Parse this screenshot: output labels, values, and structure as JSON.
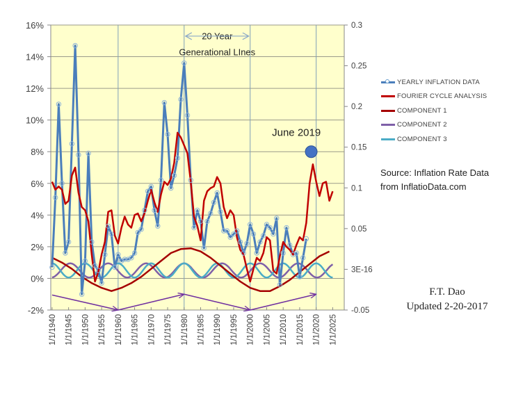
{
  "chart_data": {
    "type": "line",
    "title": "",
    "xlabel": "",
    "ylabel": "",
    "x_tick_labels": [
      "1/1/1940",
      "1/1/1945",
      "1/1/1950",
      "1/1/1955",
      "1/1/1960",
      "1/1/1965",
      "1/1/1970",
      "1/1/1975",
      "1/1/1980",
      "1/1/1985",
      "1/1/1990",
      "1/1/1995",
      "1/1/2000",
      "1/1/2005",
      "1/1/2010",
      "1/1/2015",
      "1/1/2020",
      "1/1/2025"
    ],
    "x_range": [
      1939.6,
      2028.5
    ],
    "y_left": {
      "range": [
        -2,
        16
      ],
      "ticks": [
        -2,
        0,
        2,
        4,
        6,
        8,
        10,
        12,
        14,
        16
      ],
      "tick_labels": [
        "-2%",
        "0%",
        "2%",
        "4%",
        "6%",
        "8%",
        "10%",
        "12%",
        "14%",
        "16%"
      ]
    },
    "y_right": {
      "range": [
        -0.05,
        0.3
      ],
      "ticks": [
        -0.05,
        0.0,
        0.05,
        0.1,
        0.15,
        0.2,
        0.25,
        0.3
      ],
      "tick_labels": [
        "-0.05",
        "3E-16",
        "0.05",
        "0.1",
        "0.15",
        "0.2",
        "0.25",
        "0.3"
      ]
    },
    "vertical_gridlines_years": [
      1960,
      1980,
      2000,
      2020
    ],
    "horizontal_grid": true,
    "legend_position": "right",
    "series": [
      {
        "name": "YEARLY INFLATION DATA",
        "color": "#4a7ebb",
        "marker": "open-circle",
        "axis": "left",
        "x": [
          1940,
          1941,
          1942,
          1943,
          1944,
          1945,
          1946,
          1947,
          1948,
          1949,
          1950,
          1951,
          1952,
          1953,
          1954,
          1955,
          1956,
          1957,
          1958,
          1959,
          1960,
          1961,
          1962,
          1963,
          1964,
          1965,
          1966,
          1967,
          1968,
          1969,
          1970,
          1971,
          1972,
          1973,
          1974,
          1975,
          1976,
          1977,
          1978,
          1979,
          1980,
          1981,
          1982,
          1983,
          1984,
          1985,
          1986,
          1987,
          1988,
          1989,
          1990,
          1991,
          1992,
          1993,
          1994,
          1995,
          1996,
          1997,
          1998,
          1999,
          2000,
          2001,
          2002,
          2003,
          2004,
          2005,
          2006,
          2007,
          2008,
          2009,
          2010,
          2011,
          2012,
          2013,
          2014,
          2015,
          2016,
          2017
        ],
        "y": [
          0.7,
          5.1,
          11.0,
          6.0,
          1.6,
          2.3,
          8.5,
          14.7,
          7.8,
          -1.0,
          1.1,
          7.9,
          2.3,
          0.8,
          0.5,
          -0.3,
          1.5,
          3.3,
          2.8,
          0.7,
          1.5,
          1.1,
          1.2,
          1.2,
          1.3,
          1.6,
          2.9,
          3.1,
          4.3,
          5.5,
          5.8,
          4.3,
          3.3,
          6.2,
          11.1,
          9.1,
          5.7,
          6.5,
          7.6,
          11.3,
          13.6,
          10.3,
          6.2,
          3.2,
          4.3,
          3.6,
          1.9,
          3.6,
          4.1,
          4.8,
          5.4,
          4.2,
          3.0,
          3.0,
          2.6,
          2.8,
          3.0,
          2.3,
          1.6,
          2.2,
          3.4,
          2.8,
          1.6,
          2.3,
          2.7,
          3.4,
          3.2,
          2.8,
          3.8,
          -0.4,
          1.6,
          3.2,
          2.1,
          1.5,
          1.6,
          0.1,
          1.3,
          2.5
        ]
      },
      {
        "name": "FOURIER CYCLE ANALYSIS",
        "color": "#c00000",
        "marker": "none",
        "axis": "left",
        "x": [
          1940,
          1941,
          1942,
          1943,
          1944,
          1945,
          1946,
          1947,
          1948,
          1949,
          1950,
          1951,
          1952,
          1953,
          1954,
          1955,
          1956,
          1957,
          1958,
          1959,
          1960,
          1961,
          1962,
          1963,
          1964,
          1965,
          1966,
          1967,
          1968,
          1969,
          1970,
          1971,
          1972,
          1973,
          1974,
          1975,
          1976,
          1977,
          1978,
          1979,
          1980,
          1981,
          1982,
          1983,
          1984,
          1985,
          1986,
          1987,
          1988,
          1989,
          1990,
          1991,
          1992,
          1993,
          1994,
          1995,
          1996,
          1997,
          1998,
          1999,
          2000,
          2001,
          2002,
          2003,
          2004,
          2005,
          2006,
          2007,
          2008,
          2009,
          2010,
          2011,
          2012,
          2013,
          2014,
          2015,
          2016,
          2017,
          2018,
          2019,
          2020,
          2021,
          2022,
          2023,
          2024,
          2025
        ],
        "y": [
          6.1,
          5.6,
          5.8,
          5.6,
          4.7,
          4.9,
          6.5,
          7.0,
          5.4,
          4.5,
          4.3,
          3.6,
          1.5,
          -0.2,
          0.4,
          1.5,
          2.3,
          4.2,
          4.3,
          2.7,
          2.2,
          3.2,
          3.9,
          3.4,
          3.2,
          4.0,
          4.1,
          3.6,
          4.1,
          4.9,
          5.6,
          4.8,
          4.2,
          5.3,
          6.1,
          5.9,
          6.3,
          7.3,
          9.2,
          8.9,
          8.4,
          7.9,
          6.1,
          3.9,
          3.3,
          2.4,
          4.9,
          5.5,
          5.7,
          5.8,
          6.4,
          6.0,
          4.5,
          3.8,
          4.3,
          4.0,
          2.6,
          1.8,
          1.5,
          0.6,
          -0.2,
          0.6,
          1.3,
          1.1,
          1.6,
          2.6,
          2.4,
          0.5,
          0.3,
          1.4,
          2.3,
          2.0,
          1.8,
          1.5,
          2.1,
          2.6,
          2.4,
          3.5,
          6.0,
          7.2,
          6.1,
          5.2,
          6.0,
          6.1,
          4.9,
          5.5
        ]
      },
      {
        "name": "COMPONENT 1",
        "color": "#a50000",
        "marker": "none",
        "axis": "left",
        "x": [
          1940,
          1943,
          1946,
          1949,
          1952,
          1955,
          1958,
          1961,
          1964,
          1967,
          1970,
          1973,
          1976,
          1979,
          1982,
          1985,
          1988,
          1991,
          1994,
          1997,
          2000,
          2003,
          2006,
          2009,
          2012,
          2015,
          2018,
          2021,
          2024
        ],
        "y": [
          1.3,
          1.0,
          0.6,
          0.1,
          -0.3,
          -0.6,
          -0.8,
          -0.6,
          -0.3,
          0.1,
          0.6,
          1.1,
          1.6,
          1.85,
          1.9,
          1.7,
          1.3,
          0.8,
          0.3,
          -0.2,
          -0.6,
          -0.8,
          -0.8,
          -0.5,
          -0.1,
          0.4,
          0.9,
          1.4,
          1.7
        ]
      },
      {
        "name": "COMPONENT 2",
        "color": "#7f60a8",
        "marker": "none",
        "axis": "left",
        "period_years": 11.5,
        "phase_peak_year": 1980,
        "center": 0.5,
        "amplitude": 0.45
      },
      {
        "name": "COMPONENT 3",
        "color": "#4bacc6",
        "marker": "none",
        "axis": "left",
        "period_years": 10,
        "phase_peak_year": 1980,
        "center": 0.5,
        "amplitude": 0.45
      }
    ],
    "annotations": [
      {
        "type": "text",
        "text": "20 Year",
        "x_year": 1990,
        "y": 15.1
      },
      {
        "type": "text",
        "text": "Generational LInes",
        "x_year": 1990,
        "y": 14.1
      },
      {
        "type": "double-arrow",
        "x_from_year": 1980,
        "x_to_year": 2000,
        "y": 15.3,
        "color": "#8aa8c8"
      },
      {
        "type": "text",
        "text": "June 2019",
        "x_year": 2014,
        "y": 9.0
      },
      {
        "type": "big-dot",
        "x_year": 2018.5,
        "y": 8.0,
        "color": "#4472c4"
      },
      {
        "type": "arrow",
        "x_from_year": 1940,
        "y_from": -1.05,
        "x_to_year": 1960,
        "y_to": -2.0,
        "color": "#7030a0"
      },
      {
        "type": "arrow",
        "x_from_year": 1960,
        "y_from": -2.0,
        "x_to_year": 1980,
        "y_to": -1.0,
        "color": "#7030a0"
      },
      {
        "type": "arrow",
        "x_from_year": 1980,
        "y_from": -1.0,
        "x_to_year": 2000,
        "y_to": -2.0,
        "color": "#7030a0"
      },
      {
        "type": "arrow",
        "x_from_year": 2000,
        "y_from": -2.0,
        "x_to_year": 2020,
        "y_to": -1.0,
        "color": "#7030a0"
      }
    ]
  },
  "colors": {
    "plot_background": "#ffffcc",
    "gridline": "#8c8c8c",
    "vertical_line": "#7fa0b8"
  },
  "text": {
    "source_line1": "Source: Inflation Rate Data",
    "source_line2": "from InflatioData.com",
    "author": "F.T. Dao",
    "updated": "Updated 2-20-2017"
  }
}
